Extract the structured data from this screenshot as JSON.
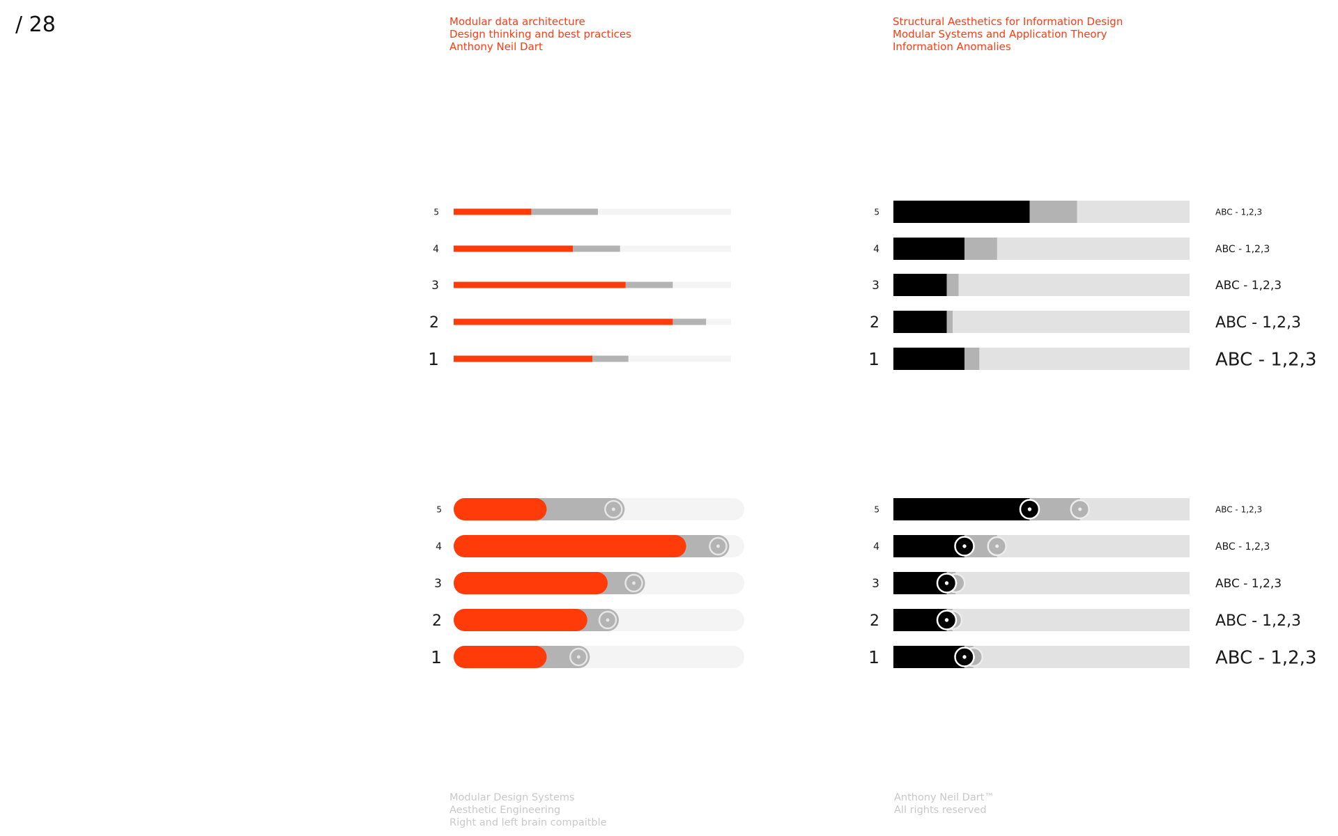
{
  "page": {
    "number": "/ 28"
  },
  "header_left": {
    "color": "#ff3b12",
    "lines": [
      "Modular data architecture",
      "Design thinking and best practices",
      "Anthony Neil Dart"
    ]
  },
  "header_right": {
    "color": "#ff3b12",
    "lines": [
      "Structural Aesthetics for Information Design",
      "Modular Systems and Application Theory",
      "Information Anomalies"
    ]
  },
  "footer_left": {
    "color": "#c8c8c8",
    "lines": [
      "Modular Design Systems",
      "Aesthetic Engineering",
      "Right and left brain compaitble"
    ]
  },
  "footer_right": {
    "color": "#c8c8c8",
    "lines": [
      "Anthony Neil Dart™",
      "All rights reserved"
    ]
  },
  "colors": {
    "accent": "#ff3b0a",
    "secondary": "#b3b3b3",
    "track_light": "#f4f4f4",
    "track_dark": "#e2e2e2",
    "black": "#000000"
  },
  "chart_data": [
    {
      "type": "bar",
      "variant": "thin-stacked",
      "categories": [
        "5",
        "4",
        "3",
        "2",
        "1"
      ],
      "xlim": [
        0,
        100
      ],
      "series": [
        {
          "values": [
            28,
            43,
            62,
            79,
            50
          ]
        },
        {
          "values": [
            24,
            17,
            17,
            12,
            13
          ]
        }
      ],
      "palette": "red"
    },
    {
      "type": "bar",
      "variant": "thick-stacked",
      "categories": [
        "5",
        "4",
        "3",
        "2",
        "1"
      ],
      "xlim": [
        0,
        100
      ],
      "series": [
        {
          "values": [
            46,
            24,
            18,
            18,
            24
          ]
        },
        {
          "values": [
            16,
            11,
            4,
            2,
            5
          ]
        }
      ],
      "labels": [
        "ABC - 1,2,3",
        "ABC - 1,2,3",
        "ABC - 1,2,3",
        "ABC - 1,2,3",
        "ABC - 1,2,3"
      ],
      "palette": "black"
    },
    {
      "type": "bar",
      "variant": "rounded-slider",
      "categories": [
        "5",
        "4",
        "3",
        "2",
        "1"
      ],
      "xlim": [
        0,
        100
      ],
      "series": [
        {
          "values": [
            32,
            80,
            53,
            46,
            32
          ]
        },
        {
          "values": [
            55,
            91,
            62,
            53,
            43
          ]
        }
      ],
      "palette": "red"
    },
    {
      "type": "bar",
      "variant": "square-slider",
      "categories": [
        "5",
        "4",
        "3",
        "2",
        "1"
      ],
      "xlim": [
        0,
        100
      ],
      "series": [
        {
          "values": [
            46,
            24,
            18,
            18,
            24
          ]
        },
        {
          "values": [
            63,
            35,
            21,
            20,
            27
          ]
        }
      ],
      "labels": [
        "ABC - 1,2,3",
        "ABC - 1,2,3",
        "ABC - 1,2,3",
        "ABC - 1,2,3",
        "ABC - 1,2,3"
      ],
      "palette": "black"
    }
  ]
}
